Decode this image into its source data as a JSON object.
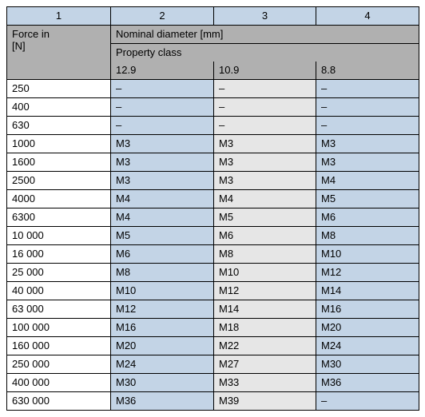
{
  "header": {
    "col_numbers": [
      "1",
      "2",
      "3",
      "4"
    ],
    "force_label_line1": "Force in",
    "force_label_line2": "[N]",
    "nominal_label": "Nominal diameter [mm]",
    "property_label": "Property class",
    "classes": [
      "12.9",
      "10.9",
      "8.8"
    ]
  },
  "rows": [
    {
      "force": "250",
      "v": [
        "–",
        "–",
        "–"
      ]
    },
    {
      "force": "400",
      "v": [
        "–",
        "–",
        "–"
      ]
    },
    {
      "force": "630",
      "v": [
        "–",
        "–",
        "–"
      ]
    },
    {
      "force": "1000",
      "v": [
        "M3",
        "M3",
        "M3"
      ]
    },
    {
      "force": "1600",
      "v": [
        "M3",
        "M3",
        "M3"
      ]
    },
    {
      "force": "2500",
      "v": [
        "M3",
        "M3",
        "M4"
      ]
    },
    {
      "force": "4000",
      "v": [
        "M4",
        "M4",
        "M5"
      ]
    },
    {
      "force": "6300",
      "v": [
        "M4",
        "M5",
        "M6"
      ]
    },
    {
      "force": "10 000",
      "v": [
        "M5",
        "M6",
        "M8"
      ]
    },
    {
      "force": "16 000",
      "v": [
        "M6",
        "M8",
        "M10"
      ]
    },
    {
      "force": "25 000",
      "v": [
        "M8",
        "M10",
        "M12"
      ]
    },
    {
      "force": "40 000",
      "v": [
        "M10",
        "M12",
        "M14"
      ]
    },
    {
      "force": "63 000",
      "v": [
        "M12",
        "M14",
        "M16"
      ]
    },
    {
      "force": "100 000",
      "v": [
        "M16",
        "M18",
        "M20"
      ]
    },
    {
      "force": "160 000",
      "v": [
        "M20",
        "M22",
        "M24"
      ]
    },
    {
      "force": "250 000",
      "v": [
        "M24",
        "M27",
        "M30"
      ]
    },
    {
      "force": "400 000",
      "v": [
        "M30",
        "M33",
        "M36"
      ]
    },
    {
      "force": "630 000",
      "v": [
        "M36",
        "M39",
        "–"
      ]
    }
  ]
}
